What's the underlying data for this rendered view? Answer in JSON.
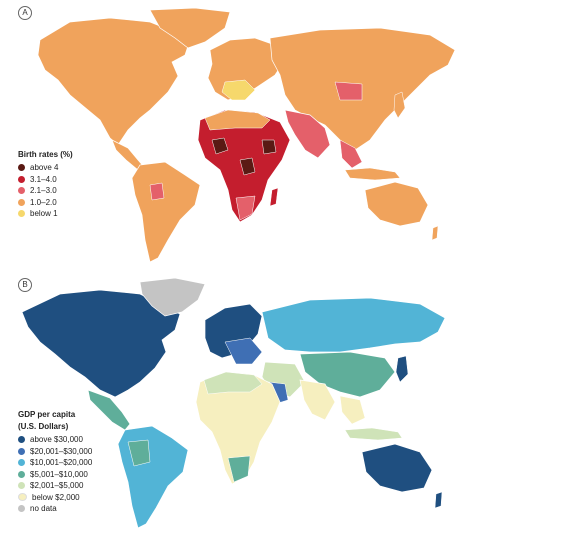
{
  "panel_a": {
    "badge": "A",
    "legend_title": "Birth rates (%)",
    "items": [
      {
        "label": "above 4",
        "color": "#5a1a14"
      },
      {
        "label": "3.1–4.0",
        "color": "#c41e2e"
      },
      {
        "label": "2.1–3.0",
        "color": "#e4606a"
      },
      {
        "label": "1.0–2.0",
        "color": "#f0a35c"
      },
      {
        "label": "below 1",
        "color": "#f6d86c"
      }
    ]
  },
  "panel_b": {
    "badge": "B",
    "legend_title_1": "GDP per capita",
    "legend_title_2": "(U.S. Dollars)",
    "items": [
      {
        "label": "above $30,000",
        "color": "#1f4f80"
      },
      {
        "label": "$20,001–$30,000",
        "color": "#3f6fb4"
      },
      {
        "label": "$10,001–$20,000",
        "color": "#52b4d6"
      },
      {
        "label": "$5,001–$10,000",
        "color": "#5fae9a"
      },
      {
        "label": "$2,001–$5,000",
        "color": "#cfe3b8"
      },
      {
        "label": "below $2,000",
        "color": "#f6efbf"
      },
      {
        "label": "no data",
        "color": "#c4c4c4"
      }
    ]
  }
}
